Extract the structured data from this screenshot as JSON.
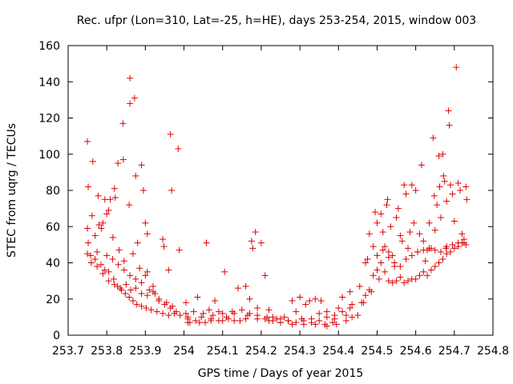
{
  "chart_data": {
    "type": "scatter",
    "title": "Rec. ufpr (Lon=310, Lat=-25, h=HE), days 253-254, 2015, window 003",
    "xlabel": "GPS time / Days of year 2015",
    "ylabel": "STEC from uqrg / TECUs",
    "xlim": [
      253.7,
      254.8
    ],
    "ylim": [
      0,
      160
    ],
    "xticks": [
      253.7,
      253.8,
      253.9,
      254.0,
      254.1,
      254.2,
      254.3,
      254.4,
      254.5,
      254.6,
      254.7,
      254.8
    ],
    "xtick_labels": [
      "253.7",
      "253.8",
      "253.9",
      "254",
      "254.1",
      "254.2",
      "254.3",
      "254.4",
      "254.5",
      "254.6",
      "254.7",
      "254.8"
    ],
    "yticks": [
      0,
      20,
      40,
      60,
      80,
      100,
      120,
      140,
      160
    ],
    "ytick_labels": [
      "0",
      "20",
      "40",
      "60",
      "80",
      "100",
      "120",
      "140",
      "160"
    ],
    "grid": false,
    "marker": "plus",
    "color": "#dd0000",
    "series": [
      {
        "points": [
          [
            253.75,
            107
          ],
          [
            253.752,
            82
          ],
          [
            253.764,
            96
          ],
          [
            253.78,
            61
          ],
          [
            253.786,
            59
          ],
          [
            253.795,
            75
          ],
          [
            253.8,
            67
          ],
          [
            253.809,
            75
          ],
          [
            253.82,
            81
          ],
          [
            253.822,
            76
          ],
          [
            253.829,
            95
          ],
          [
            253.843,
            97
          ],
          [
            253.842,
            117
          ],
          [
            253.86,
            128
          ],
          [
            253.86,
            142
          ],
          [
            253.872,
            131
          ],
          [
            253.875,
            88
          ],
          [
            253.89,
            94
          ],
          [
            253.895,
            80
          ],
          [
            253.9,
            62
          ],
          [
            253.905,
            56
          ],
          [
            253.965,
            111
          ],
          [
            253.968,
            80
          ],
          [
            253.985,
            103
          ],
          [
            253.988,
            47
          ],
          [
            253.75,
            59
          ],
          [
            253.752,
            51
          ],
          [
            253.762,
            66
          ],
          [
            253.77,
            55
          ],
          [
            253.778,
            77
          ],
          [
            253.79,
            62
          ],
          [
            253.805,
            69
          ],
          [
            253.816,
            54
          ],
          [
            253.832,
            47
          ],
          [
            253.845,
            41
          ],
          [
            253.858,
            72
          ],
          [
            253.868,
            45
          ],
          [
            253.88,
            51
          ],
          [
            253.885,
            37
          ],
          [
            253.9,
            33
          ],
          [
            253.91,
            25
          ],
          [
            253.925,
            23
          ],
          [
            253.945,
            53
          ],
          [
            253.948,
            49
          ],
          [
            253.96,
            36
          ],
          [
            253.75,
            45
          ],
          [
            253.758,
            44
          ],
          [
            253.77,
            42
          ],
          [
            253.775,
            46
          ],
          [
            253.785,
            39
          ],
          [
            253.795,
            36
          ],
          [
            253.805,
            35
          ],
          [
            253.818,
            31
          ],
          [
            253.828,
            27
          ],
          [
            253.838,
            25
          ],
          [
            253.848,
            23
          ],
          [
            253.858,
            21
          ],
          [
            253.868,
            19
          ],
          [
            253.878,
            17
          ],
          [
            253.89,
            16
          ],
          [
            253.902,
            15
          ],
          [
            253.915,
            14
          ],
          [
            253.93,
            13
          ],
          [
            253.945,
            12
          ],
          [
            253.96,
            11
          ],
          [
            253.975,
            12
          ],
          [
            253.99,
            11
          ],
          [
            253.76,
            40
          ],
          [
            253.775,
            38
          ],
          [
            253.79,
            34
          ],
          [
            253.805,
            30
          ],
          [
            253.82,
            28
          ],
          [
            253.835,
            26
          ],
          [
            253.85,
            28
          ],
          [
            253.862,
            25
          ],
          [
            253.875,
            26
          ],
          [
            253.89,
            23
          ],
          [
            253.905,
            22
          ],
          [
            253.92,
            24
          ],
          [
            253.935,
            19
          ],
          [
            253.95,
            17
          ],
          [
            253.965,
            15
          ],
          [
            253.98,
            13
          ],
          [
            253.8,
            44
          ],
          [
            253.815,
            42
          ],
          [
            253.83,
            39
          ],
          [
            253.845,
            36
          ],
          [
            253.86,
            33
          ],
          [
            253.875,
            31
          ],
          [
            253.89,
            29
          ],
          [
            253.905,
            35
          ],
          [
            253.92,
            27
          ],
          [
            253.935,
            20
          ],
          [
            253.955,
            18
          ],
          [
            253.97,
            16
          ],
          [
            254.005,
            18
          ],
          [
            254.005,
            12
          ],
          [
            254.01,
            9
          ],
          [
            254.015,
            7
          ],
          [
            254.025,
            13
          ],
          [
            254.035,
            21
          ],
          [
            254.045,
            10
          ],
          [
            254.055,
            7
          ],
          [
            254.058,
            51
          ],
          [
            254.065,
            14
          ],
          [
            254.075,
            11
          ],
          [
            254.08,
            19
          ],
          [
            254.09,
            8
          ],
          [
            254.1,
            12
          ],
          [
            254.105,
            35
          ],
          [
            254.115,
            9
          ],
          [
            254.125,
            13
          ],
          [
            254.14,
            26
          ],
          [
            254.145,
            8
          ],
          [
            254.16,
            27
          ],
          [
            254.165,
            11
          ],
          [
            254.17,
            20
          ],
          [
            254.175,
            52
          ],
          [
            254.178,
            48
          ],
          [
            254.185,
            57
          ],
          [
            254.19,
            15
          ],
          [
            254.2,
            51
          ],
          [
            254.21,
            33
          ],
          [
            254.215,
            10
          ],
          [
            254.22,
            14
          ],
          [
            254.23,
            8
          ],
          [
            254.24,
            9
          ],
          [
            254.25,
            7
          ],
          [
            254.26,
            10
          ],
          [
            254.27,
            8
          ],
          [
            254.28,
            19
          ],
          [
            254.29,
            13
          ],
          [
            254.3,
            21
          ],
          [
            254.305,
            9
          ],
          [
            254.315,
            17
          ],
          [
            254.325,
            19
          ],
          [
            254.33,
            7
          ],
          [
            254.34,
            20
          ],
          [
            254.35,
            12
          ],
          [
            254.355,
            19
          ],
          [
            254.365,
            6
          ],
          [
            254.37,
            13
          ],
          [
            254.385,
            7
          ],
          [
            254.39,
            9
          ],
          [
            254.4,
            15
          ],
          [
            254.41,
            21
          ],
          [
            254.42,
            11
          ],
          [
            254.43,
            24
          ],
          [
            254.435,
            17
          ],
          [
            254.01,
            10
          ],
          [
            254.03,
            8
          ],
          [
            254.05,
            12
          ],
          [
            254.07,
            9
          ],
          [
            254.09,
            13
          ],
          [
            254.11,
            10
          ],
          [
            254.13,
            12
          ],
          [
            254.15,
            14
          ],
          [
            254.17,
            12
          ],
          [
            254.19,
            11
          ],
          [
            254.21,
            9
          ],
          [
            254.23,
            10
          ],
          [
            254.25,
            9
          ],
          [
            254.27,
            8
          ],
          [
            254.29,
            7
          ],
          [
            254.31,
            8
          ],
          [
            254.33,
            9
          ],
          [
            254.35,
            8
          ],
          [
            254.37,
            10
          ],
          [
            254.39,
            11
          ],
          [
            254.41,
            13
          ],
          [
            254.43,
            15
          ],
          [
            254.01,
            7
          ],
          [
            254.04,
            7
          ],
          [
            254.07,
            8
          ],
          [
            254.1,
            8
          ],
          [
            254.13,
            8
          ],
          [
            254.16,
            9
          ],
          [
            254.19,
            9
          ],
          [
            254.22,
            8
          ],
          [
            254.25,
            7
          ],
          [
            254.28,
            6
          ],
          [
            254.31,
            6
          ],
          [
            254.34,
            6
          ],
          [
            254.37,
            5
          ],
          [
            254.395,
            6
          ],
          [
            254.42,
            8
          ],
          [
            254.435,
            10
          ],
          [
            254.455,
            27
          ],
          [
            254.465,
            18
          ],
          [
            254.47,
            40
          ],
          [
            254.475,
            42
          ],
          [
            254.48,
            56
          ],
          [
            254.485,
            24
          ],
          [
            254.49,
            49
          ],
          [
            254.495,
            68
          ],
          [
            254.5,
            62
          ],
          [
            254.505,
            31
          ],
          [
            254.51,
            67
          ],
          [
            254.515,
            57
          ],
          [
            254.52,
            49
          ],
          [
            254.525,
            72
          ],
          [
            254.527,
            75
          ],
          [
            254.53,
            46
          ],
          [
            254.535,
            60
          ],
          [
            254.54,
            44
          ],
          [
            254.545,
            38
          ],
          [
            254.55,
            65
          ],
          [
            254.555,
            70
          ],
          [
            254.56,
            55
          ],
          [
            254.565,
            52
          ],
          [
            254.57,
            83
          ],
          [
            254.575,
            78
          ],
          [
            254.58,
            48
          ],
          [
            254.585,
            57
          ],
          [
            254.59,
            83
          ],
          [
            254.595,
            62
          ],
          [
            254.6,
            80
          ],
          [
            254.605,
            46
          ],
          [
            254.61,
            56
          ],
          [
            254.615,
            94
          ],
          [
            254.62,
            52
          ],
          [
            254.625,
            41
          ],
          [
            254.63,
            47
          ],
          [
            254.635,
            62
          ],
          [
            254.64,
            48
          ],
          [
            254.645,
            109
          ],
          [
            254.648,
            77
          ],
          [
            254.65,
            58
          ],
          [
            254.655,
            72
          ],
          [
            254.66,
            99
          ],
          [
            254.662,
            82
          ],
          [
            254.665,
            65
          ],
          [
            254.67,
            100
          ],
          [
            254.672,
            88
          ],
          [
            254.675,
            85
          ],
          [
            254.678,
            48
          ],
          [
            254.68,
            74
          ],
          [
            254.685,
            124
          ],
          [
            254.687,
            116
          ],
          [
            254.69,
            83
          ],
          [
            254.695,
            78
          ],
          [
            254.7,
            63
          ],
          [
            254.705,
            148
          ],
          [
            254.71,
            84
          ],
          [
            254.715,
            80
          ],
          [
            254.72,
            56
          ],
          [
            254.725,
            51
          ],
          [
            254.73,
            82
          ],
          [
            254.732,
            75
          ],
          [
            254.45,
            11
          ],
          [
            254.46,
            18
          ],
          [
            254.47,
            22
          ],
          [
            254.48,
            25
          ],
          [
            254.49,
            33
          ],
          [
            254.5,
            36
          ],
          [
            254.51,
            40
          ],
          [
            254.52,
            35
          ],
          [
            254.53,
            30
          ],
          [
            254.54,
            29
          ],
          [
            254.55,
            30
          ],
          [
            254.56,
            32
          ],
          [
            254.57,
            29
          ],
          [
            254.58,
            30
          ],
          [
            254.59,
            31
          ],
          [
            254.6,
            31
          ],
          [
            254.61,
            33
          ],
          [
            254.62,
            35
          ],
          [
            254.63,
            33
          ],
          [
            254.64,
            36
          ],
          [
            254.65,
            38
          ],
          [
            254.66,
            40
          ],
          [
            254.67,
            42
          ],
          [
            254.68,
            45
          ],
          [
            254.69,
            46
          ],
          [
            254.7,
            48
          ],
          [
            254.71,
            49
          ],
          [
            254.72,
            51
          ],
          [
            254.73,
            50
          ],
          [
            254.5,
            44
          ],
          [
            254.515,
            47
          ],
          [
            254.53,
            43
          ],
          [
            254.545,
            40
          ],
          [
            254.56,
            38
          ],
          [
            254.575,
            42
          ],
          [
            254.59,
            44
          ],
          [
            254.605,
            46
          ],
          [
            254.62,
            47
          ],
          [
            254.635,
            48
          ],
          [
            254.65,
            47
          ],
          [
            254.665,
            46
          ],
          [
            254.68,
            49
          ],
          [
            254.695,
            50
          ],
          [
            254.71,
            51
          ],
          [
            254.725,
            53
          ]
        ]
      }
    ]
  }
}
